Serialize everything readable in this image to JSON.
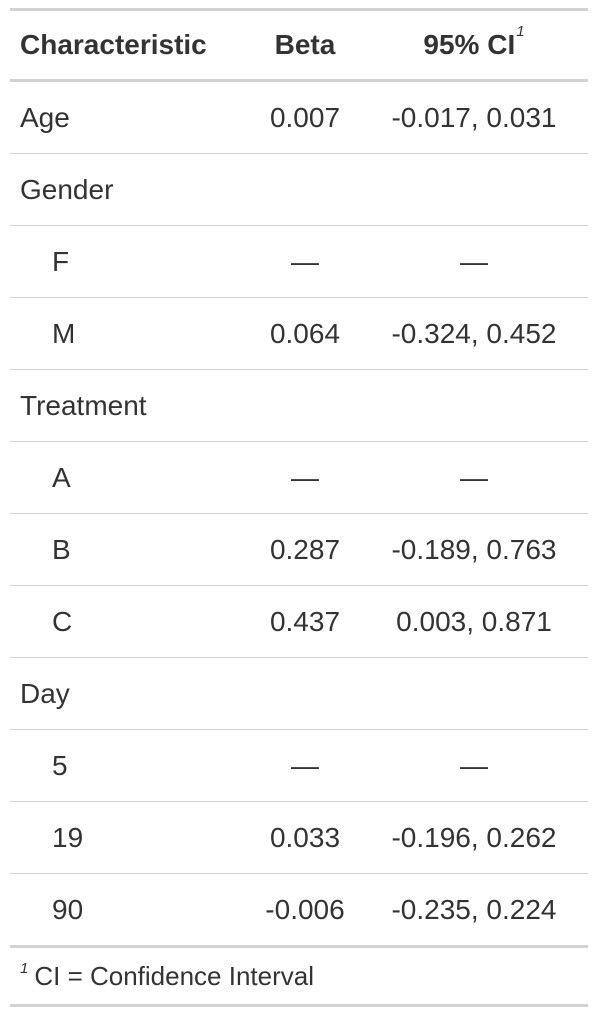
{
  "header": {
    "characteristic": "Characteristic",
    "beta": "Beta",
    "ci": "95% CI",
    "ci_footnote_mark": "1"
  },
  "rows": [
    {
      "label": "Age",
      "beta": "0.007",
      "ci": "-0.017, 0.031",
      "level": false
    },
    {
      "label": "Gender",
      "beta": "",
      "ci": "",
      "level": false
    },
    {
      "label": "F",
      "beta": "—",
      "ci": "—",
      "level": true
    },
    {
      "label": "M",
      "beta": "0.064",
      "ci": "-0.324, 0.452",
      "level": true
    },
    {
      "label": "Treatment",
      "beta": "",
      "ci": "",
      "level": false
    },
    {
      "label": "A",
      "beta": "—",
      "ci": "—",
      "level": true
    },
    {
      "label": "B",
      "beta": "0.287",
      "ci": "-0.189, 0.763",
      "level": true
    },
    {
      "label": "C",
      "beta": "0.437",
      "ci": "0.003, 0.871",
      "level": true
    },
    {
      "label": "Day",
      "beta": "",
      "ci": "",
      "level": false
    },
    {
      "label": "5",
      "beta": "—",
      "ci": "—",
      "level": true
    },
    {
      "label": "19",
      "beta": "0.033",
      "ci": "-0.196, 0.262",
      "level": true
    },
    {
      "label": "90",
      "beta": "-0.006",
      "ci": "-0.235, 0.224",
      "level": true
    }
  ],
  "footnote": {
    "mark": "1",
    "text": "CI = Confidence Interval"
  }
}
